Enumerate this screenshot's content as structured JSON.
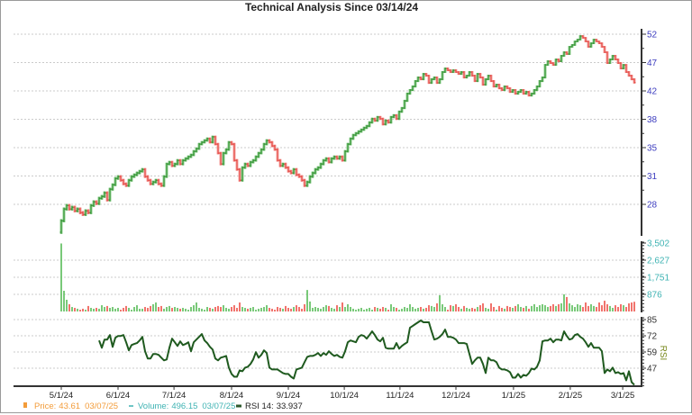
{
  "title": "Technical Analysis Since 03/14/24",
  "axes": {
    "rsi_label": "RSI",
    "date_ticks": [
      {
        "label": "5/1/24",
        "index": 0
      },
      {
        "label": "6/1/24",
        "index": 21
      },
      {
        "label": "7/1/24",
        "index": 41.7
      },
      {
        "label": "8/1/24",
        "index": 63
      },
      {
        "label": "9/1/24",
        "index": 84
      },
      {
        "label": "10/1/24",
        "index": 104.7
      },
      {
        "label": "11/1/24",
        "index": 125.3
      },
      {
        "label": "12/1/24",
        "index": 146
      },
      {
        "label": "1/1/25",
        "index": 167.3
      },
      {
        "label": "2/1/25",
        "index": 188.3
      },
      {
        "label": "3/1/25",
        "index": 207.7
      }
    ]
  },
  "legend": {
    "price": {
      "label": "Price:",
      "value": "43.61",
      "date": "03/07/25"
    },
    "volume": {
      "label": "Volume:",
      "value": "496.15",
      "date": "03/07/25"
    },
    "rsi": {
      "label": "RSI 14:",
      "value": "33.937"
    }
  },
  "colors": {
    "up": "#2a8a2a",
    "up_light": "#8fd28f",
    "down": "#e2403b",
    "down_light": "#f6a3a0",
    "volume_up": "#62c062",
    "volume_down": "#ef5b52",
    "rsi_line": "#1f5a1f",
    "price_axis_label": "#3d3dbf",
    "volume_axis_label": "#3fb3b3",
    "rsi_axis_label": "#333333",
    "rsi_vertical_label": "#7a8a20",
    "legend_price": "#f39c3a",
    "legend_volume": "#3fb3b3",
    "legend_rsi_marker": "#2d5a2d",
    "legend_rsi_text": "#222222"
  },
  "chart_data": [
    {
      "panel": "price",
      "type": "bar",
      "style": "ohlc",
      "title": "Technical Analysis Since 03/14/24",
      "xlabel": "",
      "ylabel": "Price",
      "scale": "log",
      "ylim": [
        28,
        52
      ],
      "yticks": [
        "52",
        "47",
        "42",
        "38",
        "35",
        "31",
        "28"
      ],
      "grid": true,
      "x_start": "5/1/24",
      "x_end": "03/07/25",
      "first_open": 25.3,
      "closes": [
        26.38,
        27.53,
        27.89,
        27.53,
        27.71,
        27.35,
        27.53,
        27.17,
        26.99,
        27.35,
        27.17,
        27.89,
        28.26,
        28.08,
        28.63,
        28.82,
        29.2,
        28.45,
        29.59,
        30.07,
        30.77,
        30.98,
        30.57,
        30.17,
        29.98,
        30.57,
        30.98,
        31.18,
        31.39,
        31.59,
        31.8,
        30.98,
        30.57,
        30.17,
        30.37,
        30.57,
        30.17,
        29.98,
        30.98,
        32.43,
        32.65,
        32.22,
        32.43,
        32.86,
        32.43,
        32.86,
        33.08,
        33.3,
        33.52,
        33.96,
        34.29,
        34.86,
        35.1,
        35.33,
        35.56,
        35.1,
        35.8,
        34.86,
        33.74,
        32.43,
        33.74,
        34.18,
        35.1,
        34.86,
        32.86,
        31.8,
        30.57,
        32.01,
        32.43,
        32.22,
        32.65,
        32.86,
        33.3,
        33.74,
        34.18,
        34.86,
        35.33,
        35.1,
        34.63,
        34.18,
        32.86,
        32.22,
        32.43,
        32.01,
        31.59,
        31.39,
        31.8,
        31.18,
        30.98,
        30.57,
        29.98,
        30.37,
        30.98,
        31.39,
        31.8,
        32.01,
        32.43,
        32.86,
        33.08,
        32.65,
        33.08,
        33.3,
        33.08,
        33.3,
        32.86,
        33.96,
        34.86,
        35.56,
        36.03,
        36.27,
        36.5,
        36.74,
        36.99,
        37.23,
        37.72,
        38.22,
        37.97,
        38.47,
        38.22,
        37.47,
        37.97,
        37.72,
        38.47,
        38.72,
        38.22,
        39.23,
        39.75,
        40.8,
        41.89,
        42.44,
        43.0,
        43.85,
        44.43,
        44.14,
        45.01,
        44.72,
        43.56,
        44.14,
        44.43,
        43.56,
        44.14,
        45.31,
        45.91,
        45.61,
        45.31,
        45.61,
        45.31,
        45.01,
        45.31,
        44.43,
        44.72,
        45.31,
        44.72,
        43.85,
        45.01,
        44.43,
        43.28,
        44.14,
        44.72,
        43.85,
        43.0,
        43.28,
        42.72,
        42.44,
        43.0,
        42.72,
        42.16,
        42.44,
        41.89,
        42.16,
        42.44,
        41.89,
        42.16,
        41.61,
        41.89,
        42.44,
        43.0,
        43.85,
        44.43,
        46.51,
        47.13,
        46.82,
        46.51,
        47.44,
        47.13,
        48.07,
        48.7,
        48.38,
        49.67,
        50.0,
        50.65,
        50.99,
        51.66,
        51.32,
        50.65,
        49.67,
        50.32,
        50.99,
        50.65,
        50.32,
        49.67,
        48.7,
        46.82,
        47.44,
        48.07,
        47.44,
        46.82,
        45.91,
        46.51,
        45.31,
        44.72,
        44.14,
        43.61
      ],
      "last_value": 43.61,
      "last_date": "03/07/25"
    },
    {
      "panel": "volume",
      "type": "bar",
      "ylabel": "Volume",
      "ylim": [
        0,
        3502
      ],
      "yticks": [
        "3,502",
        "2,627",
        "1,751",
        "876"
      ],
      "grid": true,
      "values": [
        3480,
        1060,
        600,
        370,
        230,
        185,
        140,
        90,
        140,
        90,
        280,
        185,
        140,
        185,
        140,
        320,
        230,
        280,
        185,
        230,
        140,
        185,
        90,
        185,
        280,
        185,
        90,
        230,
        320,
        140,
        140,
        230,
        185,
        280,
        370,
        460,
        230,
        280,
        140,
        230,
        280,
        185,
        230,
        185,
        140,
        185,
        140,
        90,
        230,
        320,
        460,
        185,
        140,
        90,
        230,
        185,
        140,
        230,
        280,
        230,
        320,
        185,
        140,
        230,
        320,
        185,
        460,
        230,
        185,
        140,
        185,
        230,
        90,
        140,
        185,
        230,
        320,
        185,
        140,
        90,
        230,
        185,
        140,
        280,
        185,
        140,
        230,
        320,
        230,
        140,
        370,
        1100,
        510,
        185,
        230,
        185,
        140,
        230,
        320,
        280,
        185,
        140,
        320,
        230,
        460,
        230,
        370,
        230,
        140,
        90,
        140,
        185,
        90,
        140,
        185,
        90,
        230,
        185,
        140,
        230,
        185,
        90,
        370,
        230,
        185,
        90,
        140,
        230,
        185,
        370,
        230,
        140,
        185,
        230,
        140,
        185,
        320,
        280,
        230,
        415,
        830,
        370,
        230,
        90,
        320,
        280,
        370,
        230,
        140,
        280,
        185,
        140,
        185,
        140,
        230,
        320,
        415,
        185,
        140,
        415,
        230,
        90,
        280,
        185,
        140,
        280,
        230,
        185,
        280,
        370,
        230,
        185,
        280,
        140,
        280,
        370,
        230,
        320,
        370,
        320,
        230,
        280,
        370,
        280,
        370,
        415,
        876,
        740,
        415,
        320,
        230,
        370,
        320,
        230,
        460,
        280,
        370,
        280,
        230,
        460,
        320,
        550,
        370,
        280,
        185,
        320,
        230,
        370,
        320,
        230,
        415,
        460,
        496.15
      ],
      "last_value": 496.15,
      "last_date": "03/07/25"
    },
    {
      "panel": "rsi",
      "type": "line",
      "name": "RSI 14",
      "ylabel": "RSI",
      "ylim": [
        32.5,
        85
      ],
      "yticks": [
        "85",
        "72",
        "59",
        "47"
      ],
      "grid": true,
      "values": [
        null,
        null,
        null,
        null,
        null,
        null,
        null,
        null,
        null,
        null,
        null,
        null,
        null,
        null,
        68.7,
        63.0,
        69.4,
        69.4,
        72.9,
        63.7,
        70.8,
        72.2,
        72.2,
        72.9,
        67.3,
        60.9,
        65.1,
        65.9,
        66.6,
        68.7,
        71.5,
        60.2,
        54.5,
        54.5,
        58.1,
        58.1,
        57.4,
        55.2,
        53.1,
        53.8,
        63.0,
        70.1,
        67.3,
        64.4,
        68.0,
        65.1,
        65.9,
        67.3,
        60.2,
        67.3,
        69.4,
        71.5,
        73.7,
        68.7,
        66.6,
        63.7,
        61.6,
        54.5,
        53.1,
        55.2,
        55.9,
        56.6,
        47.4,
        42.5,
        40.3,
        40.3,
        45.3,
        44.6,
        47.4,
        48.1,
        50.3,
        53.8,
        59.5,
        55.2,
        57.4,
        60.9,
        58.8,
        47.4,
        46.0,
        46.0,
        46.0,
        44.6,
        43.2,
        42.5,
        42.5,
        40.3,
        38.9,
        46.0,
        46.7,
        47.4,
        51.7,
        55.9,
        56.6,
        56.6,
        57.4,
        58.8,
        56.6,
        58.8,
        57.4,
        60.2,
        58.1,
        56.6,
        57.4,
        55.9,
        55.2,
        60.2,
        67.3,
        68.7,
        68.0,
        67.3,
        71.5,
        72.9,
        72.2,
        70.1,
        72.9,
        75.8,
        72.9,
        69.4,
        68.0,
        70.8,
        63.0,
        62.3,
        62.3,
        62.3,
        66.6,
        62.3,
        64.4,
        65.9,
        67.3,
        78.6,
        80.0,
        81.5,
        82.9,
        84.3,
        82.9,
        82.9,
        82.9,
        75.8,
        69.4,
        70.1,
        71.5,
        73.7,
        77.2,
        71.5,
        71.5,
        70.8,
        69.4,
        66.6,
        66.6,
        66.6,
        65.9,
        58.1,
        50.3,
        53.1,
        55.2,
        55.2,
        50.3,
        43.2,
        55.2,
        53.1,
        53.1,
        51.7,
        47.4,
        46.0,
        46.0,
        45.3,
        43.9,
        39.6,
        39.6,
        42.5,
        39.6,
        41.8,
        41.1,
        43.2,
        46.7,
        46.0,
        48.1,
        53.1,
        68.0,
        68.7,
        68.7,
        70.1,
        67.3,
        69.4,
        69.4,
        68.7,
        75.8,
        72.2,
        69.4,
        70.1,
        72.9,
        73.7,
        71.5,
        70.1,
        67.3,
        63.7,
        66.6,
        63.0,
        63.0,
        63.0,
        60.2,
        43.2,
        46.0,
        44.6,
        47.4,
        43.2,
        43.9,
        42.5,
        43.2,
        37.5,
        44.6,
        36.1,
        33.937
      ],
      "last_value": 33.937
    }
  ]
}
